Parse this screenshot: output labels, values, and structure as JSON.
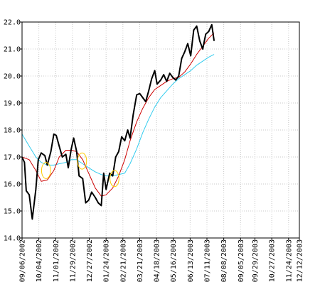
{
  "chart_data": {
    "type": "line",
    "title": "",
    "xlabel": "",
    "ylabel": "",
    "ylim": [
      14.0,
      22.0
    ],
    "yticks": [
      14.0,
      15.0,
      16.0,
      17.0,
      18.0,
      19.0,
      20.0,
      21.0,
      22.0
    ],
    "ytick_labels": [
      "14.0",
      "15.0",
      "16.0",
      "17.0",
      "18.0",
      "19.0",
      "20.0",
      "21.0",
      "22.0"
    ],
    "x_start": "2002-09-06",
    "x_end": "2003-12-12",
    "xtick_labels": [
      "09/06/2002",
      "10/04/2002",
      "11/01/2002",
      "11/29/2002",
      "12/27/2002",
      "01/24/2003",
      "02/21/2003",
      "03/21/2003",
      "04/18/2003",
      "05/16/2003",
      "06/13/2003",
      "07/11/2003",
      "08/08/2003",
      "09/05/2003",
      "09/29/2003",
      "10/27/2003",
      "11/24/2003",
      "12/12/2003"
    ],
    "xtick_dates": [
      "2002-09-06",
      "2002-10-04",
      "2002-11-01",
      "2002-11-29",
      "2002-12-27",
      "2003-01-24",
      "2003-02-21",
      "2003-03-21",
      "2003-04-18",
      "2003-05-16",
      "2003-06-13",
      "2003-07-11",
      "2003-08-08",
      "2003-09-05",
      "2003-09-29",
      "2003-10-27",
      "2003-11-24",
      "2003-12-12"
    ],
    "grid": true,
    "series": [
      {
        "color": "#000000",
        "points": [
          [
            "2002-09-06",
            17.0
          ],
          [
            "2002-09-10",
            16.8
          ],
          [
            "2002-09-13",
            15.75
          ],
          [
            "2002-09-18",
            15.6
          ],
          [
            "2002-09-23",
            14.7
          ],
          [
            "2002-09-29",
            15.8
          ],
          [
            "2002-10-03",
            16.9
          ],
          [
            "2002-10-08",
            17.15
          ],
          [
            "2002-10-14",
            17.05
          ],
          [
            "2002-10-18",
            16.7
          ],
          [
            "2002-10-24",
            17.2
          ],
          [
            "2002-10-29",
            17.85
          ],
          [
            "2002-11-02",
            17.8
          ],
          [
            "2002-11-07",
            17.4
          ],
          [
            "2002-11-12",
            17.0
          ],
          [
            "2002-11-18",
            17.1
          ],
          [
            "2002-11-22",
            16.6
          ],
          [
            "2002-11-27",
            17.3
          ],
          [
            "2002-12-01",
            17.7
          ],
          [
            "2002-12-06",
            17.2
          ],
          [
            "2002-12-10",
            16.3
          ],
          [
            "2002-12-16",
            16.2
          ],
          [
            "2002-12-21",
            15.3
          ],
          [
            "2002-12-26",
            15.4
          ],
          [
            "2002-12-31",
            15.7
          ],
          [
            "2003-01-06",
            15.5
          ],
          [
            "2003-01-11",
            15.3
          ],
          [
            "2003-01-16",
            15.2
          ],
          [
            "2003-01-20",
            16.4
          ],
          [
            "2003-01-24",
            15.8
          ],
          [
            "2003-01-30",
            16.4
          ],
          [
            "2003-02-04",
            16.3
          ],
          [
            "2003-02-09",
            17.0
          ],
          [
            "2003-02-14",
            17.2
          ],
          [
            "2003-02-19",
            17.75
          ],
          [
            "2003-02-24",
            17.6
          ],
          [
            "2003-03-01",
            18.0
          ],
          [
            "2003-03-05",
            17.7
          ],
          [
            "2003-03-10",
            18.55
          ],
          [
            "2003-03-16",
            19.3
          ],
          [
            "2003-03-21",
            19.35
          ],
          [
            "2003-03-26",
            19.2
          ],
          [
            "2003-03-31",
            19.05
          ],
          [
            "2003-04-05",
            19.45
          ],
          [
            "2003-04-10",
            19.9
          ],
          [
            "2003-04-15",
            20.2
          ],
          [
            "2003-04-19",
            19.7
          ],
          [
            "2003-04-25",
            19.85
          ],
          [
            "2003-04-30",
            20.05
          ],
          [
            "2003-05-05",
            19.8
          ],
          [
            "2003-05-10",
            20.1
          ],
          [
            "2003-05-15",
            19.95
          ],
          [
            "2003-05-20",
            19.85
          ],
          [
            "2003-05-25",
            20.0
          ],
          [
            "2003-05-30",
            20.65
          ],
          [
            "2003-06-04",
            20.9
          ],
          [
            "2003-06-09",
            21.2
          ],
          [
            "2003-06-14",
            20.75
          ],
          [
            "2003-06-19",
            21.7
          ],
          [
            "2003-06-24",
            21.85
          ],
          [
            "2003-06-29",
            21.3
          ],
          [
            "2003-07-04",
            21.0
          ],
          [
            "2003-07-09",
            21.55
          ],
          [
            "2003-07-14",
            21.65
          ],
          [
            "2003-07-19",
            21.9
          ],
          [
            "2003-07-23",
            21.3
          ]
        ]
      },
      {
        "color": "#cc0000",
        "points": [
          [
            "2002-09-06",
            17.0
          ],
          [
            "2002-09-18",
            16.9
          ],
          [
            "2002-09-29",
            16.5
          ],
          [
            "2002-10-08",
            16.1
          ],
          [
            "2002-10-18",
            16.15
          ],
          [
            "2002-10-29",
            16.5
          ],
          [
            "2002-11-07",
            17.0
          ],
          [
            "2002-11-18",
            17.25
          ],
          [
            "2002-11-27",
            17.25
          ],
          [
            "2002-12-06",
            17.2
          ],
          [
            "2002-12-16",
            16.9
          ],
          [
            "2002-12-26",
            16.4
          ],
          [
            "2003-01-06",
            15.85
          ],
          [
            "2003-01-16",
            15.55
          ],
          [
            "2003-01-24",
            15.6
          ],
          [
            "2003-02-04",
            15.85
          ],
          [
            "2003-02-14",
            16.3
          ],
          [
            "2003-02-24",
            16.9
          ],
          [
            "2003-03-05",
            17.6
          ],
          [
            "2003-03-16",
            18.3
          ],
          [
            "2003-03-26",
            18.8
          ],
          [
            "2003-04-05",
            19.2
          ],
          [
            "2003-04-15",
            19.5
          ],
          [
            "2003-04-25",
            19.65
          ],
          [
            "2003-05-05",
            19.8
          ],
          [
            "2003-05-15",
            19.9
          ],
          [
            "2003-05-25",
            19.95
          ],
          [
            "2003-06-04",
            20.15
          ],
          [
            "2003-06-14",
            20.45
          ],
          [
            "2003-06-24",
            20.8
          ],
          [
            "2003-07-04",
            21.1
          ],
          [
            "2003-07-14",
            21.4
          ],
          [
            "2003-07-23",
            21.6
          ]
        ]
      },
      {
        "color": "#33ccee",
        "points": [
          [
            "2002-09-06",
            17.85
          ],
          [
            "2002-09-18",
            17.4
          ],
          [
            "2002-09-29",
            17.0
          ],
          [
            "2002-10-08",
            16.8
          ],
          [
            "2002-10-18",
            16.7
          ],
          [
            "2002-10-29",
            16.7
          ],
          [
            "2002-11-07",
            16.75
          ],
          [
            "2002-11-18",
            16.8
          ],
          [
            "2002-11-27",
            16.9
          ],
          [
            "2002-12-06",
            16.9
          ],
          [
            "2002-12-16",
            16.75
          ],
          [
            "2002-12-26",
            16.6
          ],
          [
            "2003-01-06",
            16.45
          ],
          [
            "2003-01-16",
            16.35
          ],
          [
            "2003-01-24",
            16.3
          ],
          [
            "2003-02-04",
            16.3
          ],
          [
            "2003-02-14",
            16.35
          ],
          [
            "2003-02-24",
            16.4
          ],
          [
            "2003-03-05",
            16.75
          ],
          [
            "2003-03-16",
            17.3
          ],
          [
            "2003-03-26",
            17.9
          ],
          [
            "2003-04-05",
            18.4
          ],
          [
            "2003-04-15",
            18.85
          ],
          [
            "2003-04-25",
            19.2
          ],
          [
            "2003-05-05",
            19.45
          ],
          [
            "2003-05-15",
            19.7
          ],
          [
            "2003-05-25",
            19.9
          ],
          [
            "2003-06-04",
            20.05
          ],
          [
            "2003-06-14",
            20.2
          ],
          [
            "2003-06-24",
            20.4
          ],
          [
            "2003-07-04",
            20.55
          ],
          [
            "2003-07-14",
            20.7
          ],
          [
            "2003-07-23",
            20.8
          ]
        ]
      }
    ],
    "annotations": [
      {
        "shape": "ellipse",
        "color": "#ffcc00",
        "date": "2002-10-16",
        "value": 16.5,
        "rx_days": 7.5,
        "ry_value": 0.3
      },
      {
        "shape": "ellipse",
        "color": "#ffcc00",
        "date": "2002-12-15",
        "value": 16.85,
        "rx_days": 7.5,
        "ry_value": 0.3
      },
      {
        "shape": "ellipse",
        "color": "#ffcc00",
        "date": "2003-02-07",
        "value": 16.2,
        "rx_days": 7.5,
        "ry_value": 0.3
      }
    ]
  }
}
